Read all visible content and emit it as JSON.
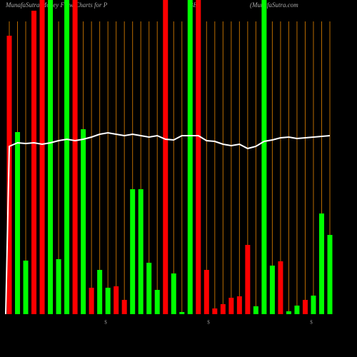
{
  "chart_data": {
    "type": "bar",
    "title_parts": [
      "MunafaSutra Money Flow Charts for P",
      "BE",
      "(MunafaSutra.com"
    ],
    "categories": [
      null,
      null,
      null,
      null,
      null,
      null,
      null,
      null,
      null,
      null,
      null,
      null,
      null,
      null,
      null,
      null,
      null,
      null,
      null,
      null,
      null,
      null,
      null,
      null,
      null,
      null,
      null,
      null,
      null,
      null,
      null,
      null,
      null,
      null,
      null,
      null,
      null,
      null,
      null,
      null
    ],
    "values": [
      390,
      255,
      75,
      425,
      440,
      440,
      77,
      440,
      440,
      259,
      37,
      62,
      37,
      39,
      20,
      175,
      175,
      72,
      34,
      440,
      57,
      3,
      440,
      440,
      62,
      8,
      14,
      23,
      25,
      97,
      11,
      440,
      68,
      74,
      4,
      12,
      20,
      26,
      141,
      111
    ],
    "colors": [
      "#ff0000",
      "#00ff00",
      "#00ff00",
      "#ff0000",
      "#ff0000",
      "#00ff00",
      "#00ff00",
      "#00ff00",
      "#ff0000",
      "#00ff00",
      "#ff0000",
      "#00ff00",
      "#00ff00",
      "#ff0000",
      "#ff0000",
      "#00ff00",
      "#00ff00",
      "#00ff00",
      "#00ff00",
      "#ff0000",
      "#00ff00",
      "#00ff00",
      "#00ff00",
      "#ff0000",
      "#ff0000",
      "#ff0000",
      "#ff0000",
      "#ff0000",
      "#ff0000",
      "#ff0000",
      "#00ff00",
      "#00ff00",
      "#00ff00",
      "#ff0000",
      "#00ff00",
      "#00ff00",
      "#ff0000",
      "#00ff00",
      "#00ff00",
      "#00ff00"
    ],
    "line_values": [
      235,
      240,
      239,
      240,
      238,
      240,
      243,
      245,
      243,
      245,
      248,
      252,
      254,
      252,
      250,
      252,
      250,
      248,
      250,
      245,
      244,
      250,
      250,
      250,
      243,
      242,
      238,
      236,
      238,
      232,
      235,
      242,
      244,
      247,
      248,
      246,
      247,
      248,
      249,
      250
    ],
    "line_color": "#ffffff",
    "markers": [
      "$",
      "$",
      "$"
    ],
    "ylim": [
      0,
      440
    ]
  }
}
